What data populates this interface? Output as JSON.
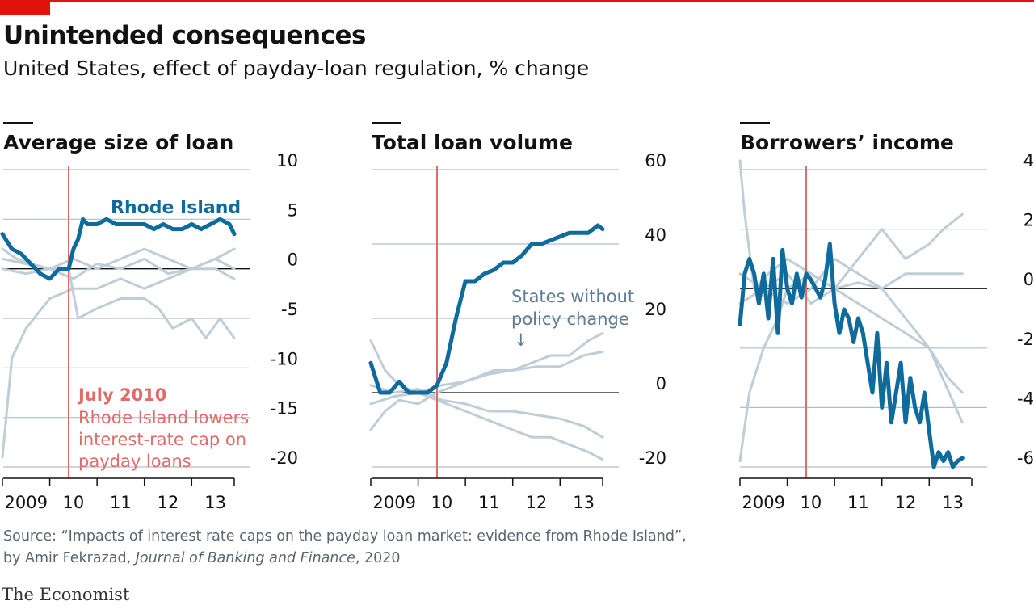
{
  "header": {
    "title": "Unintended consequences",
    "subtitle": "United States, effect of payday-loan regulation, % change"
  },
  "source": {
    "line1": "Source: “Impacts of interest rate caps on the payday loan market: evidence from Rhode Island”,",
    "line2_prefix": "by Amir Fekrazad, ",
    "journal": "Journal of Banking and Finance",
    "line2_suffix": ", 2020"
  },
  "brand": "The Economist",
  "colors": {
    "highlight": "#0e6b9c",
    "others": "#bfcdd7",
    "event": "#e36a6a",
    "grid": "#aebfcc",
    "accent": "#e3120b"
  },
  "chart_data": [
    {
      "type": "line",
      "title": "Average size of loan",
      "ylim": [
        -20,
        10
      ],
      "yticks": [
        10,
        5,
        0,
        -5,
        -10,
        -15,
        -20
      ],
      "ytick_labels": [
        "10",
        "5",
        "0",
        "-5",
        "-10",
        "-15",
        "-20"
      ],
      "xlabels": [
        "2009",
        "10",
        "11",
        "12",
        "13"
      ],
      "event_x": 2010.4,
      "annotations": {
        "series_label": "Rhode Island",
        "event_title": "July 2010",
        "event_text": [
          "Rhode Island lowers",
          "interest-rate cap on",
          "payday loans"
        ]
      },
      "series": [
        {
          "name": "Rhode Island",
          "highlight": true,
          "x": [
            2009.0,
            2009.2,
            2009.4,
            2009.6,
            2009.8,
            2010.0,
            2010.2,
            2010.4,
            2010.5,
            2010.6,
            2010.7,
            2010.8,
            2011.0,
            2011.2,
            2011.4,
            2011.6,
            2011.8,
            2012.0,
            2012.2,
            2012.4,
            2012.6,
            2012.8,
            2013.0,
            2013.2,
            2013.4,
            2013.6,
            2013.8,
            2013.9
          ],
          "y": [
            3.5,
            2,
            1.5,
            0.5,
            -0.5,
            -1,
            0,
            0,
            2,
            3,
            5,
            4.5,
            4.5,
            5,
            4.5,
            4.5,
            4.5,
            4.5,
            4,
            4.5,
            4,
            4,
            4.5,
            4,
            4.5,
            5,
            4.5,
            3.5
          ]
        },
        {
          "x": [
            2009.0,
            2009.2,
            2009.5,
            2010.0,
            2010.5,
            2011.0,
            2011.5,
            2012.0,
            2012.5,
            2013.0,
            2013.5,
            2013.9
          ],
          "y": [
            -19,
            -9,
            -6,
            -3,
            -2,
            -2,
            -1,
            -2,
            -1,
            0,
            1,
            0
          ]
        },
        {
          "x": [
            2009.0,
            2009.3,
            2009.6,
            2010.0,
            2010.4,
            2010.6,
            2011.0,
            2011.5,
            2012.0,
            2012.3,
            2012.6,
            2013.0,
            2013.3,
            2013.6,
            2013.9
          ],
          "y": [
            2,
            1,
            0.5,
            0,
            0,
            -5,
            -4,
            -3,
            -3,
            -4,
            -6,
            -5,
            -7,
            -5,
            -7
          ]
        },
        {
          "x": [
            2009.0,
            2009.5,
            2010.0,
            2010.5,
            2011.0,
            2011.5,
            2012.0,
            2012.5,
            2013.0,
            2013.5,
            2013.9
          ],
          "y": [
            1,
            0.5,
            0,
            1,
            0,
            1,
            2,
            1,
            0,
            0,
            -1
          ]
        },
        {
          "x": [
            2009.0,
            2009.5,
            2010.0,
            2010.5,
            2011.0,
            2011.5,
            2012.0,
            2012.5,
            2013.0,
            2013.5,
            2013.9
          ],
          "y": [
            0,
            -0.5,
            0,
            -1,
            0.5,
            0,
            1,
            -0.5,
            0,
            1,
            2
          ]
        }
      ]
    },
    {
      "type": "line",
      "title": "Total loan volume",
      "ylim": [
        -20,
        60
      ],
      "yticks": [
        60,
        40,
        20,
        0,
        -20
      ],
      "ytick_labels": [
        "60",
        "40",
        "20",
        "0",
        "-20"
      ],
      "xlabels": [
        "2009",
        "10",
        "11",
        "12",
        "13"
      ],
      "event_x": 2010.4,
      "annotations": {
        "others_label": [
          "States without",
          "policy change"
        ],
        "arrow": "↓"
      },
      "series": [
        {
          "name": "Rhode Island",
          "highlight": true,
          "x": [
            2009.0,
            2009.2,
            2009.4,
            2009.6,
            2009.8,
            2010.0,
            2010.2,
            2010.4,
            2010.6,
            2010.8,
            2011.0,
            2011.2,
            2011.4,
            2011.6,
            2011.8,
            2012.0,
            2012.2,
            2012.4,
            2012.6,
            2012.8,
            2013.0,
            2013.2,
            2013.4,
            2013.6,
            2013.8,
            2013.9
          ],
          "y": [
            8,
            0,
            0,
            3,
            0,
            0,
            0,
            2,
            8,
            20,
            30,
            30,
            32,
            33,
            35,
            35,
            37,
            40,
            40,
            41,
            42,
            43,
            43,
            43,
            45,
            44
          ]
        },
        {
          "x": [
            2009.0,
            2009.3,
            2009.6,
            2010.0,
            2010.4,
            2010.8,
            2011.2,
            2011.6,
            2012.0,
            2012.4,
            2012.8,
            2013.2,
            2013.6,
            2013.9
          ],
          "y": [
            14,
            6,
            2,
            0,
            -2,
            -4,
            -6,
            -8,
            -10,
            -12,
            -12,
            -14,
            -16,
            -18
          ]
        },
        {
          "x": [
            2009.0,
            2009.3,
            2009.6,
            2010.0,
            2010.4,
            2010.8,
            2011.2,
            2011.6,
            2012.0,
            2012.4,
            2012.8,
            2013.2,
            2013.6,
            2013.9
          ],
          "y": [
            -10,
            -5,
            -2,
            -3,
            0,
            2,
            4,
            6,
            6,
            8,
            10,
            10,
            14,
            16
          ]
        },
        {
          "x": [
            2009.0,
            2009.5,
            2010.0,
            2010.5,
            2011.0,
            2011.5,
            2012.0,
            2012.5,
            2013.0,
            2013.5,
            2013.9
          ],
          "y": [
            2,
            0,
            1,
            -2,
            -3,
            -5,
            -5,
            -6,
            -7,
            -9,
            -12
          ]
        },
        {
          "x": [
            2009.0,
            2009.5,
            2010.0,
            2010.5,
            2011.0,
            2011.5,
            2012.0,
            2012.5,
            2013.0,
            2013.5,
            2013.9
          ],
          "y": [
            -3,
            -1,
            0,
            2,
            3,
            5,
            6,
            7,
            7,
            10,
            11
          ]
        }
      ]
    },
    {
      "type": "line",
      "title": "Borrowers’ income",
      "ylim": [
        -6,
        4
      ],
      "yticks": [
        4,
        2,
        0,
        -2,
        -4,
        -6
      ],
      "ytick_labels": [
        "4",
        "2",
        "0",
        "-2",
        "-4",
        "-6"
      ],
      "xlabels": [
        "2009",
        "10",
        "11",
        "12",
        "13"
      ],
      "event_x": 2010.4,
      "series": [
        {
          "name": "Rhode Island",
          "highlight": true,
          "x": [
            2009.0,
            2009.1,
            2009.2,
            2009.3,
            2009.4,
            2009.5,
            2009.6,
            2009.7,
            2009.8,
            2009.9,
            2010.0,
            2010.1,
            2010.2,
            2010.3,
            2010.4,
            2010.5,
            2010.6,
            2010.7,
            2010.8,
            2010.9,
            2011.0,
            2011.1,
            2011.2,
            2011.3,
            2011.4,
            2011.5,
            2011.6,
            2011.7,
            2011.8,
            2011.9,
            2012.0,
            2012.1,
            2012.2,
            2012.3,
            2012.4,
            2012.5,
            2012.6,
            2012.7,
            2012.8,
            2012.9,
            2013.0,
            2013.1,
            2013.2,
            2013.3,
            2013.4,
            2013.5,
            2013.6,
            2013.7
          ],
          "y": [
            -1.2,
            0.5,
            1,
            0.5,
            -0.5,
            0.5,
            -1,
            1,
            -1.5,
            1.3,
            0,
            -0.5,
            0.5,
            -0.3,
            0.5,
            0.3,
            0,
            -0.3,
            0.3,
            1.5,
            -0.5,
            -1.5,
            -0.7,
            -1,
            -1.8,
            -1,
            -1.5,
            -2.5,
            -3.5,
            -1.5,
            -4,
            -2.5,
            -4.5,
            -3.5,
            -2.5,
            -4.5,
            -3,
            -4,
            -4.5,
            -3.5,
            -4.8,
            -6,
            -5.5,
            -5.8,
            -5.5,
            -6,
            -5.8,
            -5.7
          ]
        },
        {
          "x": [
            2009.0,
            2009.1,
            2009.3,
            2009.6,
            2010.0,
            2010.5,
            2011.0,
            2011.5,
            2012.0,
            2012.5,
            2013.0,
            2013.3,
            2013.7
          ],
          "y": [
            4.3,
            2.5,
            0,
            0.5,
            1,
            0.5,
            0,
            1,
            2,
            1,
            1.5,
            2,
            2.5
          ]
        },
        {
          "x": [
            2009.0,
            2009.2,
            2009.5,
            2009.8,
            2010.0,
            2010.5,
            2011.0,
            2011.5,
            2012.0,
            2012.5,
            2013.0,
            2013.4,
            2013.7
          ],
          "y": [
            -5.8,
            -3.5,
            -2,
            -1,
            0,
            0.5,
            0,
            0.2,
            0,
            -1,
            -2,
            -3,
            -3.5
          ]
        },
        {
          "x": [
            2009.0,
            2009.5,
            2010.0,
            2010.5,
            2011.0,
            2011.5,
            2012.0,
            2012.5,
            2013.0,
            2013.7
          ],
          "y": [
            0.5,
            0,
            -0.5,
            0,
            1,
            0.5,
            0,
            0.5,
            0.5,
            0.5
          ]
        },
        {
          "x": [
            2009.0,
            2009.5,
            2010.0,
            2010.5,
            2011.0,
            2011.5,
            2012.0,
            2012.5,
            2013.0,
            2013.7
          ],
          "y": [
            -0.5,
            0,
            0.5,
            -0.5,
            0,
            -0.5,
            -1,
            -1.5,
            -2,
            -4.5
          ]
        }
      ]
    }
  ]
}
